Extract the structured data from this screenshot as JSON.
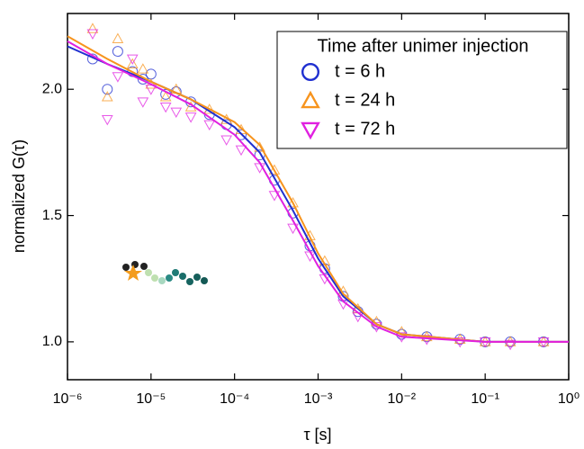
{
  "chart_data": {
    "type": "scatter",
    "x_label": "τ [s]",
    "y_label": "normalized G(τ)",
    "xscale": "log",
    "xlim": [
      1e-06,
      1
    ],
    "ylim": [
      0.85,
      2.3
    ],
    "xticks": [
      {
        "value": 1e-06,
        "label": "10⁻⁶"
      },
      {
        "value": 1e-05,
        "label": "10⁻⁵"
      },
      {
        "value": 0.0001,
        "label": "10⁻⁴"
      },
      {
        "value": 0.001,
        "label": "10⁻³"
      },
      {
        "value": 0.01,
        "label": "10⁻²"
      },
      {
        "value": 0.1,
        "label": "10⁻¹"
      },
      {
        "value": 1,
        "label": "10⁰"
      }
    ],
    "yticks": [
      {
        "value": 1,
        "label": "1.0"
      },
      1.5,
      {
        "value": 2,
        "label": "2.0"
      }
    ],
    "legend_title": "Time after unimer injection",
    "legend": "top-right",
    "series": [
      {
        "name": "t = 6 h",
        "color": "#1f2fd0",
        "marker": "circle",
        "x": [
          2e-06,
          3e-06,
          4e-06,
          6e-06,
          8e-06,
          1e-05,
          1.5e-05,
          2e-05,
          3e-05,
          5e-05,
          8e-05,
          0.00012,
          0.0002,
          0.0003,
          0.0005,
          0.0008,
          0.0012,
          0.002,
          0.003,
          0.005,
          0.01,
          0.02,
          0.05,
          0.1,
          0.2,
          0.5
        ],
        "values": [
          2.12,
          2.0,
          2.15,
          2.07,
          2.04,
          2.06,
          1.98,
          1.99,
          1.95,
          1.9,
          1.86,
          1.82,
          1.74,
          1.64,
          1.51,
          1.38,
          1.29,
          1.18,
          1.12,
          1.07,
          1.03,
          1.02,
          1.01,
          1.0,
          1.0,
          1.0
        ]
      },
      {
        "name": "t = 24 h",
        "color": "#f7941d",
        "marker": "triangle",
        "x": [
          2e-06,
          3e-06,
          4e-06,
          6e-06,
          8e-06,
          1e-05,
          1.5e-05,
          2e-05,
          3e-05,
          5e-05,
          8e-05,
          0.00012,
          0.0002,
          0.0003,
          0.0005,
          0.0008,
          0.0012,
          0.002,
          0.003,
          0.005,
          0.01,
          0.02,
          0.05,
          0.1,
          0.2,
          0.5
        ],
        "values": [
          2.24,
          1.97,
          2.2,
          2.1,
          2.08,
          2.02,
          1.97,
          2.0,
          1.93,
          1.92,
          1.88,
          1.84,
          1.77,
          1.68,
          1.55,
          1.42,
          1.32,
          1.2,
          1.13,
          1.08,
          1.04,
          1.02,
          1.01,
          1.0,
          1.0,
          1.0
        ]
      },
      {
        "name": "t = 72 h",
        "color": "#e020e0",
        "marker": "triangle-down",
        "x": [
          2e-06,
          3e-06,
          4e-06,
          6e-06,
          8e-06,
          1e-05,
          1.5e-05,
          2e-05,
          3e-05,
          5e-05,
          8e-05,
          0.00012,
          0.0002,
          0.0003,
          0.0005,
          0.0008,
          0.0012,
          0.002,
          0.003,
          0.005,
          0.01,
          0.02,
          0.05,
          0.1,
          0.2,
          0.5
        ],
        "values": [
          2.22,
          1.88,
          2.05,
          2.12,
          1.95,
          2.0,
          1.93,
          1.91,
          1.89,
          1.86,
          1.8,
          1.76,
          1.69,
          1.58,
          1.45,
          1.34,
          1.25,
          1.15,
          1.1,
          1.06,
          1.02,
          1.01,
          1.0,
          1.0,
          0.99,
          1.0
        ]
      }
    ],
    "fits": [
      {
        "color": "#1f2fd0",
        "x": [
          1e-06,
          3e-06,
          1e-05,
          3e-05,
          0.0001,
          0.0002,
          0.0005,
          0.001,
          0.002,
          0.005,
          0.01,
          0.1,
          1
        ],
        "values": [
          2.17,
          2.1,
          2.03,
          1.96,
          1.85,
          1.75,
          1.52,
          1.33,
          1.18,
          1.07,
          1.03,
          1.0,
          1.0
        ]
      },
      {
        "color": "#f7941d",
        "x": [
          1e-06,
          3e-06,
          1e-05,
          3e-05,
          0.0001,
          0.0002,
          0.0005,
          0.001,
          0.002,
          0.005,
          0.01,
          0.1,
          1
        ],
        "values": [
          2.21,
          2.12,
          2.03,
          1.96,
          1.87,
          1.78,
          1.55,
          1.35,
          1.19,
          1.07,
          1.03,
          1.0,
          1.0
        ]
      },
      {
        "color": "#e020e0",
        "x": [
          1e-06,
          3e-06,
          1e-05,
          3e-05,
          0.0001,
          0.0002,
          0.0005,
          0.001,
          0.002,
          0.005,
          0.01,
          0.1,
          1
        ],
        "values": [
          2.19,
          2.1,
          2.02,
          1.94,
          1.82,
          1.71,
          1.48,
          1.3,
          1.16,
          1.06,
          1.02,
          1.0,
          1.0
        ]
      }
    ]
  }
}
